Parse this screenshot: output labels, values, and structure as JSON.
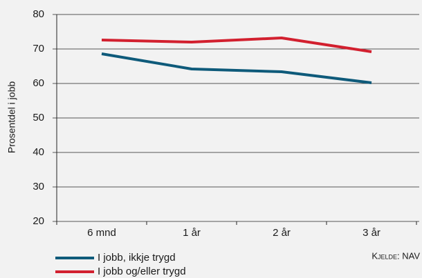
{
  "chart_data": {
    "type": "line",
    "y_label": "Prosentdel i jobb",
    "source": "Kjelde: NAV",
    "categories": [
      "6 mnd",
      "1 år",
      "2 år",
      "3 år"
    ],
    "series": [
      {
        "name": "I jobb, ikkje trygd",
        "color": "#0e5a7a",
        "values": [
          68.6,
          64.2,
          63.4,
          60.2
        ]
      },
      {
        "name": "I jobb og/eller trygd",
        "color": "#d2202f",
        "values": [
          72.6,
          72.0,
          73.2,
          69.2
        ]
      }
    ],
    "ylim": [
      20,
      80
    ],
    "yticks": [
      20,
      30,
      40,
      50,
      60,
      70,
      80
    ],
    "grid": true
  }
}
